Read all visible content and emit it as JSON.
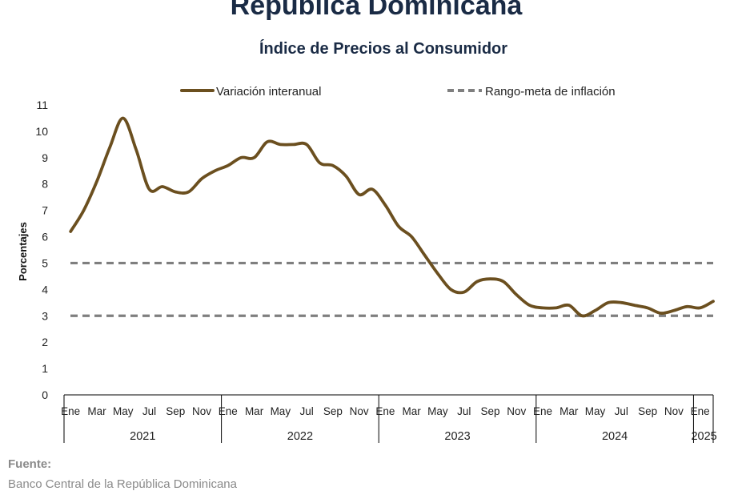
{
  "header": {
    "title": "República Dominicana",
    "subtitle": "Índice de Precios al Consumidor"
  },
  "chart_data": {
    "type": "line",
    "title": "República Dominicana",
    "subtitle": "Índice de Precios al Consumidor",
    "xlabel": "",
    "ylabel": "Porcentajes",
    "ylim": [
      0,
      11
    ],
    "yticks": [
      "0",
      "1",
      "2",
      "3",
      "4",
      "5",
      "6",
      "7",
      "8",
      "9",
      "10",
      "11"
    ],
    "grid": false,
    "legend_position": "top",
    "month_tick_labels": [
      "Ene",
      "Mar",
      "May",
      "Jul",
      "Sep",
      "Nov"
    ],
    "final_month_tick_label": "Ene",
    "years": [
      "2021",
      "2022",
      "2023",
      "2024",
      "2025"
    ],
    "x": [
      "2021-01",
      "2021-02",
      "2021-03",
      "2021-04",
      "2021-05",
      "2021-06",
      "2021-07",
      "2021-08",
      "2021-09",
      "2021-10",
      "2021-11",
      "2021-12",
      "2022-01",
      "2022-02",
      "2022-03",
      "2022-04",
      "2022-05",
      "2022-06",
      "2022-07",
      "2022-08",
      "2022-09",
      "2022-10",
      "2022-11",
      "2022-12",
      "2023-01",
      "2023-02",
      "2023-03",
      "2023-04",
      "2023-05",
      "2023-06",
      "2023-07",
      "2023-08",
      "2023-09",
      "2023-10",
      "2023-11",
      "2023-12",
      "2024-01",
      "2024-02",
      "2024-03",
      "2024-04",
      "2024-05",
      "2024-06",
      "2024-07",
      "2024-08",
      "2024-09",
      "2024-10",
      "2024-11",
      "2024-12",
      "2025-01",
      "2025-02"
    ],
    "series": [
      {
        "name": "Variación interanual",
        "style": "solid",
        "color": "#6b4f1f",
        "values": [
          6.2,
          7.0,
          8.1,
          9.4,
          10.5,
          9.3,
          7.8,
          7.9,
          7.7,
          7.7,
          8.2,
          8.5,
          8.7,
          9.0,
          9.0,
          9.6,
          9.5,
          9.5,
          9.5,
          8.8,
          8.7,
          8.3,
          7.6,
          7.8,
          7.2,
          6.4,
          6.0,
          5.3,
          4.6,
          4.0,
          3.9,
          4.3,
          4.4,
          4.3,
          3.8,
          3.4,
          3.3,
          3.3,
          3.4,
          3.0,
          3.2,
          3.5,
          3.5,
          3.4,
          3.3,
          3.1,
          3.2,
          3.35,
          3.3,
          3.55
        ]
      },
      {
        "name": "Rango-meta de inflación",
        "style": "dashed",
        "color": "#7f7f7f",
        "band": [
          3,
          5
        ]
      }
    ]
  },
  "source": {
    "label": "Fuente:",
    "text": "Banco Central de la República Dominicana"
  }
}
